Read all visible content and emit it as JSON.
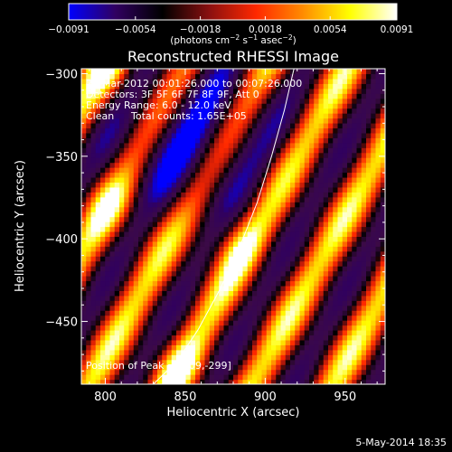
{
  "chart_data": {
    "type": "heatmap",
    "title": "Reconstructed RHESSI Image",
    "xlabel": "Heliocentric X (arcsec)",
    "ylabel": "Heliocentric Y (arcsec)",
    "xlim": [
      785,
      975
    ],
    "ylim": [
      -488,
      -297
    ],
    "x_ticks": [
      {
        "value": 800,
        "label": "800"
      },
      {
        "value": 850,
        "label": "850"
      },
      {
        "value": 900,
        "label": "900"
      },
      {
        "value": 950,
        "label": "950"
      }
    ],
    "y_ticks": [
      {
        "value": -300,
        "label": "−300"
      },
      {
        "value": -350,
        "label": "−350"
      },
      {
        "value": -400,
        "label": "−400"
      },
      {
        "value": -450,
        "label": "−450"
      }
    ],
    "colorbar": {
      "min": -0.0091,
      "max": 0.0091,
      "ticks": [
        {
          "value": -0.0091,
          "label": "−0.0091"
        },
        {
          "value": -0.0054,
          "label": "−0.0054"
        },
        {
          "value": -0.0018,
          "label": "−0.0018"
        },
        {
          "value": 0.0018,
          "label": "0.0018"
        },
        {
          "value": 0.0054,
          "label": "0.0054"
        },
        {
          "value": 0.0091,
          "label": "0.0091"
        }
      ],
      "unit_parts": [
        "(photons cm",
        "−2",
        " s",
        "−1",
        " asec",
        "−2",
        ")"
      ],
      "colors": [
        "#0000ff",
        "#300060",
        "#000000",
        "#8a1010",
        "#ff2800",
        "#ff8c00",
        "#ffff00",
        "#ffffff"
      ]
    },
    "annotations": {
      "time_range": "22-Mar-2012 00:01:26.000 to 00:07:26.000",
      "detectors": "Detectors: 3F 5F 6F 7F 8F 9F, Att 0",
      "energy_range": "Energy Range: 6.0 - 12.0 keV",
      "clean_label": "Clean",
      "total_counts": "Total counts: 1.65E+05",
      "peak_position": "Position of Peak = [809,-299]"
    },
    "limb_curve": [
      [
        830,
        -488
      ],
      [
        845,
        -474
      ],
      [
        858,
        -455
      ],
      [
        872,
        -430
      ],
      [
        884,
        -405
      ],
      [
        895,
        -378
      ],
      [
        904,
        -350
      ],
      [
        912,
        -322
      ],
      [
        918,
        -297
      ]
    ],
    "image_pattern": {
      "ridge_direction_deg": 60,
      "ridge_spacing_arcsec": 44,
      "bright_spots": [
        {
          "x": 880,
          "y": -402,
          "strength": 1.0
        },
        {
          "x": 848,
          "y": -478,
          "strength": 0.8
        },
        {
          "x": 803,
          "y": -380,
          "strength": 0.7
        },
        {
          "x": 805,
          "y": -297,
          "strength": 0.9
        }
      ],
      "dark_spots": [
        {
          "x": 855,
          "y": -340,
          "strength": 1.0
        }
      ]
    }
  },
  "footer": {
    "date": "5-May-2014 18:35"
  }
}
